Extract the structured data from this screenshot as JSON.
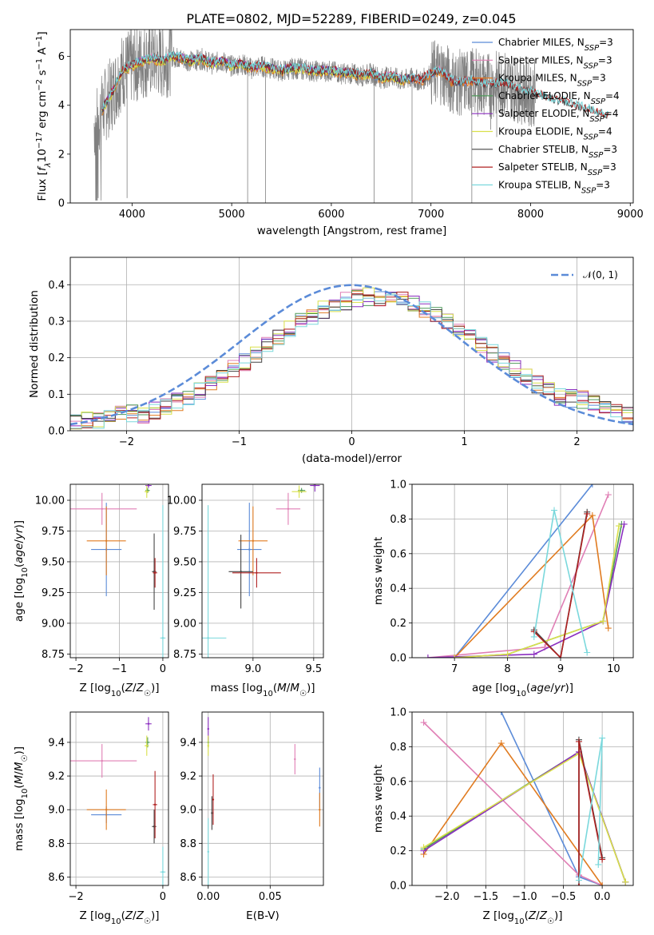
{
  "title": "PLATE=0802, MJD=52289, FIBERID=0249, z=0.045",
  "chart_data": [
    {
      "id": "spectrum",
      "type": "line",
      "xlabel": "wavelength [Angstrom, rest frame]",
      "ylabel": "Flux [f_λ10^-17 erg cm^-2 s^-1 A^-1]",
      "xlim": [
        3380,
        9030
      ],
      "ylim": [
        0,
        7.1
      ],
      "xticks": [
        4000,
        5000,
        6000,
        7000,
        8000,
        9000
      ],
      "yticks": [
        0,
        2,
        4,
        6
      ],
      "grid": false,
      "legend_position": "right",
      "observed": {
        "color": "#808080",
        "x": [
          3650,
          3700,
          3800,
          3900,
          4000,
          4100,
          4200,
          4300,
          4400,
          4500,
          4600,
          4700,
          4800,
          4900,
          5000,
          5100,
          5200,
          5300,
          5400,
          5500,
          5600,
          5700,
          5800,
          5900,
          6000,
          6100,
          6200,
          6300,
          6400,
          6500,
          6600,
          6700,
          6800,
          6900,
          7000,
          7100,
          7200,
          7300,
          7400,
          7500,
          7600,
          7700,
          7800,
          7900,
          8000
        ],
        "y": [
          3.3,
          3.8,
          4.5,
          5.4,
          5.6,
          5.8,
          5.9,
          5.8,
          6.0,
          5.9,
          5.8,
          5.9,
          5.7,
          5.8,
          5.6,
          5.7,
          5.5,
          5.6,
          5.5,
          5.4,
          5.5,
          5.5,
          5.4,
          5.4,
          5.4,
          5.3,
          5.3,
          5.2,
          5.3,
          5.1,
          5.2,
          5.0,
          5.1,
          5.0,
          5.3,
          5.4,
          5.0,
          4.9,
          5.0,
          4.9,
          4.8,
          4.9,
          4.8,
          4.6,
          4.5
        ],
        "spikes": [
          {
            "x": 3660,
            "y": 0.2
          },
          {
            "x": 3950,
            "y": 0.2
          },
          {
            "x": 5160,
            "y": 0.0
          },
          {
            "x": 5340,
            "y": 0.0
          },
          {
            "x": 6430,
            "y": 0.0
          },
          {
            "x": 6810,
            "y": 0.0
          },
          {
            "x": 7410,
            "y": 0.0
          },
          {
            "x": 7600,
            "y": 3.0
          },
          {
            "x": 7660,
            "y": 2.7
          }
        ]
      },
      "model_x": [
        3700,
        3800,
        3900,
        4000,
        4100,
        4200,
        4300,
        4400,
        4500,
        4600,
        4700,
        4800,
        4900,
        5000,
        5100,
        5200,
        5300,
        5400,
        5500,
        5600,
        5700,
        5800,
        5900,
        6000,
        6100,
        6200,
        6300,
        6400,
        6500,
        6600,
        6700,
        6800,
        6900,
        7000,
        7100,
        7200,
        7300,
        7400,
        7500,
        7600,
        7700,
        7800,
        7900,
        8000,
        8100,
        8200,
        8300,
        8400,
        8500,
        8600,
        8700,
        8780
      ],
      "series": [
        {
          "name": "Chabrier MILES, N_SSP=3",
          "color": "#5b8bd8",
          "offset": 0.0,
          "end": 7420
        },
        {
          "name": "Salpeter MILES, N_SSP=3",
          "color": "#e07fb5",
          "offset": 0.05,
          "end": 7420
        },
        {
          "name": "Kroupa MILES, N_SSP=3",
          "color": "#e07b20",
          "offset": -0.05,
          "end": 7420
        },
        {
          "name": "Chabrier ELODIE, N_SSP=4",
          "color": "#4f9a5a",
          "offset": 0.02,
          "end": 6800
        },
        {
          "name": "Salpeter ELODIE, N_SSP=4",
          "color": "#8b2fc0",
          "offset": 0.04,
          "end": 6800
        },
        {
          "name": "Kroupa ELODIE, N_SSP=4",
          "color": "#d9e04a",
          "offset": -0.03,
          "end": 6800
        },
        {
          "name": "Chabrier STELIB, N_SSP=3",
          "color": "#444444",
          "offset": 0.03,
          "end": 8780
        },
        {
          "name": "Salpeter STELIB, N_SSP=3",
          "color": "#b02222",
          "offset": 0.06,
          "end": 8780
        },
        {
          "name": "Kroupa STELIB, N_SSP=3",
          "color": "#7ad8dc",
          "offset": 0.08,
          "end": 8780
        }
      ]
    },
    {
      "id": "residuals",
      "type": "line",
      "xlabel": "(data-model)/error",
      "ylabel": "Normed distribution",
      "xlim": [
        -2.5,
        2.5
      ],
      "ylim": [
        0,
        0.475
      ],
      "xticks": [
        -2,
        -1,
        0,
        1,
        2
      ],
      "yticks": [
        0.0,
        0.1,
        0.2,
        0.3,
        0.4
      ],
      "grid": true,
      "legend_position": "top-right",
      "reference": {
        "name": "𝒩(0, 1)",
        "color": "#5b8bd8",
        "style": "dashed"
      },
      "bin_width": 0.1
    },
    {
      "id": "age_vs_Z",
      "type": "scatter",
      "xlabel": "Z [log10(Z/Z☉)]",
      "ylabel": "age [log10(age/yr)]",
      "xlim": [
        -2.13,
        0.13
      ],
      "ylim": [
        8.72,
        10.13
      ],
      "xticks": [
        -2,
        -1,
        0
      ],
      "yticks": [
        8.75,
        9.0,
        9.25,
        9.5,
        9.75,
        10.0
      ],
      "grid": true,
      "points": [
        {
          "color": "#5b8bd8",
          "x": -1.3,
          "xerr": 0.35,
          "y": 9.6,
          "yerr": 0.38
        },
        {
          "color": "#e07fb5",
          "x": -1.4,
          "xerr": 0.8,
          "y": 9.93,
          "yerr": 0.13
        },
        {
          "color": "#e07b20",
          "x": -1.3,
          "xerr": 0.45,
          "y": 9.67,
          "yerr": 0.28
        },
        {
          "color": "#4f9a5a",
          "x": -0.35,
          "xerr": 0.05,
          "y": 10.08,
          "yerr": 0.02
        },
        {
          "color": "#8b2fc0",
          "x": -0.33,
          "xerr": 0.07,
          "y": 10.12,
          "yerr": 0.02
        },
        {
          "color": "#d9e04a",
          "x": -0.37,
          "xerr": 0.05,
          "y": 10.07,
          "yerr": 0.05
        },
        {
          "color": "#444444",
          "x": -0.2,
          "xerr": 0.05,
          "y": 9.42,
          "yerr": 0.31
        },
        {
          "color": "#b02222",
          "x": -0.18,
          "xerr": 0.05,
          "y": 9.41,
          "yerr": 0.12
        },
        {
          "color": "#7ad8dc",
          "x": 0.0,
          "xerr": 0.06,
          "y": 8.88,
          "yerr": 1.08
        }
      ]
    },
    {
      "id": "age_vs_mass",
      "type": "scatter",
      "xlabel": "mass [log10(M/M☉)]",
      "ylabel": "",
      "xlim": [
        8.58,
        9.58
      ],
      "ylim": [
        8.72,
        10.13
      ],
      "xticks": [
        9.0,
        9.5
      ],
      "yticks": [
        8.75,
        9.0,
        9.25,
        9.5,
        9.75,
        10.0
      ],
      "grid": true,
      "points": [
        {
          "color": "#5b8bd8",
          "x": 8.97,
          "xerr": 0.1,
          "y": 9.6,
          "yerr": 0.38
        },
        {
          "color": "#e07fb5",
          "x": 9.29,
          "xerr": 0.1,
          "y": 9.93,
          "yerr": 0.13
        },
        {
          "color": "#e07b20",
          "x": 9.0,
          "xerr": 0.12,
          "y": 9.67,
          "yerr": 0.28
        },
        {
          "color": "#4f9a5a",
          "x": 9.4,
          "xerr": 0.03,
          "y": 10.08,
          "yerr": 0.02
        },
        {
          "color": "#8b2fc0",
          "x": 9.51,
          "xerr": 0.04,
          "y": 10.12,
          "yerr": 0.05
        },
        {
          "color": "#d9e04a",
          "x": 9.38,
          "xerr": 0.06,
          "y": 10.07,
          "yerr": 0.05
        },
        {
          "color": "#444444",
          "x": 8.9,
          "xerr": 0.1,
          "y": 9.42,
          "yerr": 0.3
        },
        {
          "color": "#b02222",
          "x": 9.03,
          "xerr": 0.2,
          "y": 9.41,
          "yerr": 0.12
        },
        {
          "color": "#7ad8dc",
          "x": 8.63,
          "xerr": 0.15,
          "y": 8.88,
          "yerr": 1.08
        }
      ]
    },
    {
      "id": "weight_vs_age",
      "type": "line",
      "xlabel": "age [log10(age/yr)]",
      "ylabel": "mass weight",
      "xlim": [
        6.2,
        10.37
      ],
      "ylim": [
        0,
        1
      ],
      "xticks": [
        7,
        8,
        9,
        10
      ],
      "yticks": [
        0.0,
        0.2,
        0.4,
        0.6,
        0.8,
        1.0
      ],
      "grid": true,
      "series": [
        {
          "color": "#5b8bd8",
          "x": [
            7.0,
            9.6
          ],
          "y": [
            0.0,
            1.0
          ]
        },
        {
          "color": "#e07fb5",
          "x": [
            6.5,
            8.7,
            9.9
          ],
          "y": [
            0.0,
            0.06,
            0.94
          ]
        },
        {
          "color": "#e07b20",
          "x": [
            7.0,
            9.6,
            9.9
          ],
          "y": [
            0.0,
            0.82,
            0.17
          ]
        },
        {
          "color": "#4f9a5a",
          "x": [
            7.0,
            8.0,
            9.8,
            10.15
          ],
          "y": [
            0.0,
            0.02,
            0.21,
            0.77
          ]
        },
        {
          "color": "#8b2fc0",
          "x": [
            6.5,
            8.5,
            9.8,
            10.2
          ],
          "y": [
            0.0,
            0.02,
            0.21,
            0.77
          ]
        },
        {
          "color": "#d9e04a",
          "x": [
            7.0,
            8.0,
            9.8,
            10.1
          ],
          "y": [
            0.0,
            0.02,
            0.21,
            0.76
          ]
        },
        {
          "color": "#444444",
          "x": [
            8.5,
            9.0,
            9.5
          ],
          "y": [
            0.16,
            0.0,
            0.84
          ]
        },
        {
          "color": "#b02222",
          "x": [
            8.5,
            9.0,
            9.5
          ],
          "y": [
            0.15,
            0.0,
            0.83
          ]
        },
        {
          "color": "#7ad8dc",
          "x": [
            8.5,
            8.88,
            9.5
          ],
          "y": [
            0.12,
            0.85,
            0.03
          ]
        }
      ]
    },
    {
      "id": "mass_vs_Z",
      "type": "scatter",
      "xlabel": "Z [log10(Z/Z☉)]",
      "ylabel": "mass [log10(M/M☉)]",
      "xlim": [
        -2.13,
        0.13
      ],
      "ylim": [
        8.55,
        9.58
      ],
      "xticks": [
        -2,
        0
      ],
      "yticks": [
        8.6,
        8.8,
        9.0,
        9.2,
        9.4
      ],
      "grid": true,
      "points": [
        {
          "color": "#5b8bd8",
          "x": -1.3,
          "xerr": 0.35,
          "y": 8.97,
          "yerr": 0.05
        },
        {
          "color": "#e07fb5",
          "x": -1.4,
          "xerr": 0.8,
          "y": 9.29,
          "yerr": 0.1
        },
        {
          "color": "#e07b20",
          "x": -1.3,
          "xerr": 0.45,
          "y": 9.0,
          "yerr": 0.12
        },
        {
          "color": "#4f9a5a",
          "x": -0.35,
          "xerr": 0.05,
          "y": 9.4,
          "yerr": 0.03
        },
        {
          "color": "#8b2fc0",
          "x": -0.33,
          "xerr": 0.07,
          "y": 9.51,
          "yerr": 0.04
        },
        {
          "color": "#d9e04a",
          "x": -0.37,
          "xerr": 0.05,
          "y": 9.38,
          "yerr": 0.06
        },
        {
          "color": "#444444",
          "x": -0.2,
          "xerr": 0.05,
          "y": 8.9,
          "yerr": 0.1
        },
        {
          "color": "#b02222",
          "x": -0.18,
          "xerr": 0.05,
          "y": 9.03,
          "yerr": 0.2
        },
        {
          "color": "#7ad8dc",
          "x": 0.0,
          "xerr": 0.06,
          "y": 8.63,
          "yerr": 0.15
        }
      ]
    },
    {
      "id": "mass_vs_ebv",
      "type": "scatter",
      "xlabel": "E(B-V)",
      "ylabel": "",
      "xlim": [
        -0.005,
        0.093
      ],
      "ylim": [
        8.55,
        9.58
      ],
      "xticks": [
        0.0,
        0.05
      ],
      "yticks": [
        8.6,
        8.8,
        9.0,
        9.2,
        9.4
      ],
      "grid": true,
      "points": [
        {
          "color": "#5b8bd8",
          "x": 0.09,
          "y": 9.13,
          "yerr": 0.12
        },
        {
          "color": "#e07fb5",
          "x": 0.07,
          "y": 9.3,
          "yerr": 0.09
        },
        {
          "color": "#e07b20",
          "x": 0.09,
          "y": 9.0,
          "yerr": 0.1
        },
        {
          "color": "#4f9a5a",
          "x": 0.0,
          "y": 9.4,
          "yerr": 0.03
        },
        {
          "color": "#8b2fc0",
          "x": 0.0,
          "y": 9.48,
          "yerr": 0.07
        },
        {
          "color": "#d9e04a",
          "x": 0.0,
          "y": 9.38,
          "yerr": 0.06
        },
        {
          "color": "#444444",
          "x": 0.003,
          "y": 8.98,
          "yerr": 0.1
        },
        {
          "color": "#b02222",
          "x": 0.004,
          "y": 9.06,
          "yerr": 0.15
        },
        {
          "color": "#7ad8dc",
          "x": 0.0,
          "y": 8.75,
          "yerr": 0.2
        }
      ]
    },
    {
      "id": "weight_vs_Z",
      "type": "line",
      "xlabel": "Z [log10(Z/Z☉)]",
      "ylabel": "mass weight",
      "xlim": [
        -2.45,
        0.4
      ],
      "ylim": [
        0,
        1
      ],
      "xticks": [
        -2.0,
        -1.5,
        -1.0,
        -0.5,
        0.0
      ],
      "yticks": [
        0.0,
        0.2,
        0.4,
        0.6,
        0.8,
        1.0
      ],
      "grid": true,
      "series": [
        {
          "color": "#5b8bd8",
          "x": [
            -1.3,
            -0.3,
            0.0
          ],
          "y": [
            1.0,
            0.05,
            0.0
          ]
        },
        {
          "color": "#e07fb5",
          "x": [
            -2.3,
            -0.3,
            0.0
          ],
          "y": [
            0.94,
            0.06,
            0.0
          ]
        },
        {
          "color": "#e07b20",
          "x": [
            -2.3,
            -1.3,
            0.0
          ],
          "y": [
            0.18,
            0.82,
            0.0
          ]
        },
        {
          "color": "#4f9a5a",
          "x": [
            -2.3,
            -0.3,
            0.3
          ],
          "y": [
            0.21,
            0.77,
            0.02
          ]
        },
        {
          "color": "#8b2fc0",
          "x": [
            -2.3,
            -0.3,
            0.3
          ],
          "y": [
            0.2,
            0.77,
            0.02
          ]
        },
        {
          "color": "#d9e04a",
          "x": [
            -2.3,
            -0.3,
            0.3
          ],
          "y": [
            0.22,
            0.76,
            0.02
          ]
        },
        {
          "color": "#444444",
          "x": [
            -0.3,
            -0.3,
            0.0
          ],
          "y": [
            0.0,
            0.84,
            0.16
          ]
        },
        {
          "color": "#b02222",
          "x": [
            -0.3,
            -0.3,
            0.0
          ],
          "y": [
            0.0,
            0.83,
            0.15
          ]
        },
        {
          "color": "#7ad8dc",
          "x": [
            -0.3,
            0.0,
            -0.05
          ],
          "y": [
            0.03,
            0.85,
            0.12
          ]
        }
      ]
    }
  ]
}
